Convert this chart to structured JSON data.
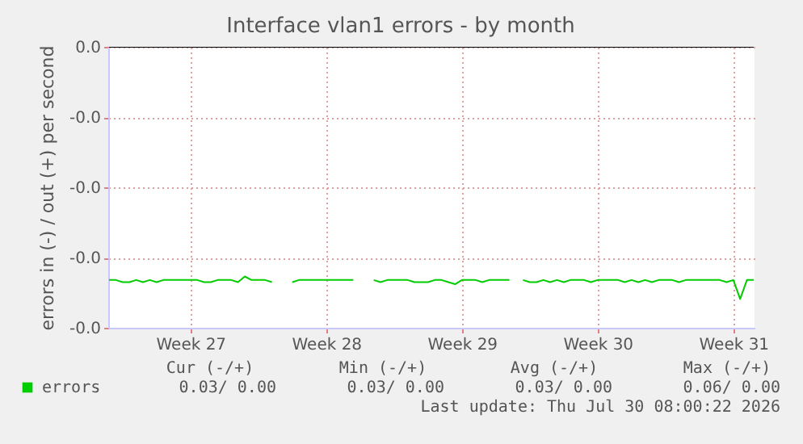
{
  "chart_data": {
    "type": "line",
    "title": "Interface vlan1 errors - by month",
    "ylabel": "errors in (-) / out (+) per second",
    "categories": [
      null,
      null,
      null,
      null,
      null,
      null,
      null,
      null,
      null,
      null,
      null,
      null,
      "Week 27",
      null,
      null,
      null,
      null,
      null,
      null,
      null,
      null,
      null,
      null,
      null,
      null,
      null,
      null,
      null,
      null,
      null,
      null,
      null,
      "Week 28",
      null,
      null,
      null,
      null,
      null,
      null,
      null,
      null,
      null,
      null,
      null,
      null,
      null,
      null,
      null,
      null,
      null,
      null,
      null,
      "Week 29",
      null,
      null,
      null,
      null,
      null,
      null,
      null,
      null,
      null,
      null,
      null,
      null,
      null,
      null,
      null,
      null,
      null,
      null,
      null,
      "Week 30",
      null,
      null,
      null,
      null,
      null,
      null,
      null,
      null,
      null,
      null,
      null,
      null,
      null,
      null,
      null,
      null,
      null,
      null,
      null,
      "Week 31",
      null,
      null,
      null
    ],
    "ylim": [
      -0.04,
      0
    ],
    "yticks": [
      {
        "value": 0,
        "label": "0.0"
      },
      {
        "value": -0.01,
        "label": "-0.0"
      },
      {
        "value": -0.02,
        "label": "-0.0"
      },
      {
        "value": -0.03,
        "label": "-0.0"
      },
      {
        "value": -0.04,
        "label": "-0.0"
      }
    ],
    "grid": true,
    "legend": "bottom left",
    "marker": "none",
    "line_style": "solid",
    "series": [
      {
        "name": "errors",
        "color": "#00cc00",
        "values": [
          -0.0332,
          -0.0332,
          -0.0335,
          -0.0335,
          -0.0332,
          -0.0335,
          -0.0332,
          -0.0335,
          -0.0332,
          -0.0332,
          -0.0332,
          -0.0332,
          -0.0332,
          -0.0332,
          -0.0335,
          -0.0335,
          -0.0332,
          -0.0332,
          -0.0332,
          -0.0335,
          -0.0327,
          -0.0332,
          -0.0332,
          -0.0332,
          -0.0335,
          null,
          null,
          -0.0335,
          -0.0332,
          -0.0332,
          -0.0332,
          -0.0332,
          -0.0332,
          -0.0332,
          -0.0332,
          -0.0332,
          -0.0332,
          null,
          null,
          -0.0332,
          -0.0335,
          -0.0332,
          -0.0332,
          -0.0332,
          -0.0332,
          -0.0335,
          -0.0335,
          -0.0335,
          -0.0332,
          -0.0332,
          -0.0335,
          -0.0338,
          -0.0332,
          -0.0332,
          -0.0332,
          -0.0335,
          -0.0332,
          -0.0332,
          -0.0332,
          -0.0332,
          null,
          -0.0332,
          -0.0335,
          -0.0335,
          -0.0332,
          -0.0335,
          -0.0332,
          -0.0335,
          -0.0332,
          -0.0332,
          -0.0332,
          -0.0335,
          -0.0332,
          -0.0332,
          -0.0332,
          -0.0332,
          -0.0335,
          -0.0332,
          -0.0335,
          -0.0332,
          -0.0335,
          -0.0332,
          -0.0332,
          -0.0332,
          -0.0335,
          -0.0332,
          -0.0332,
          -0.0332,
          -0.0332,
          -0.0332,
          -0.0332,
          -0.0335,
          -0.0332,
          -0.0359,
          -0.0332,
          -0.0332
        ]
      },
      {
        "color": "#000000",
        "values": [
          0,
          0,
          0,
          0,
          0,
          0,
          0,
          0,
          0,
          0,
          0,
          0,
          0,
          0,
          0,
          0,
          0,
          0,
          0,
          0,
          0,
          0,
          0,
          0,
          0,
          0,
          0,
          0,
          0,
          0,
          0,
          0,
          0,
          0,
          0,
          0,
          0,
          0,
          0,
          0,
          0,
          0,
          0,
          0,
          0,
          0,
          0,
          0,
          0,
          0,
          0,
          0,
          0,
          0,
          0,
          0,
          0,
          0,
          0,
          0,
          0,
          0,
          0,
          0,
          0,
          0,
          0,
          0,
          0,
          0,
          0,
          0,
          0,
          0,
          0,
          0,
          0,
          0,
          0,
          0,
          0,
          0,
          0,
          0,
          0,
          0,
          0,
          0,
          0,
          0,
          0,
          0,
          0,
          0,
          0,
          0
        ]
      }
    ],
    "annotations": [
      "Cur (-/+)",
      "Min (-/+)",
      "Avg (-/+)",
      "Max (-/+)",
      "0.03/   0.00",
      "0.03/   0.00",
      "0.03/   0.00",
      "0.06/   0.00",
      "Last update: Thu Jul 30 08:00:22 2026"
    ]
  }
}
